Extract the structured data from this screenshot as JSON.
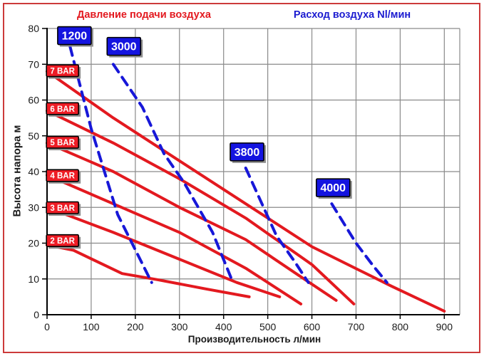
{
  "frame": {
    "border_color": "#cc3a3a",
    "background": "#ffffff"
  },
  "header": {
    "title_left": "Давление подачи воздуха",
    "title_left_color": "#e3191f",
    "title_right": "Расход воздуха Nl/мин",
    "title_right_color": "#1b1bd0"
  },
  "chart_data": {
    "type": "line",
    "title_left": "Давление подачи воздуха",
    "title_right": "Расход воздуха Nl/мин",
    "xlabel": "Производительность л/мин",
    "ylabel": "Высота напора м",
    "xlim": [
      0,
      935
    ],
    "ylim": [
      0,
      80
    ],
    "xticks": [
      0,
      100,
      200,
      300,
      400,
      500,
      600,
      700,
      800,
      900
    ],
    "yticks": [
      0,
      10,
      20,
      30,
      40,
      50,
      60,
      70,
      80
    ],
    "grid": "on",
    "grid_color": "#8a8a8a",
    "axis_color": "#000000",
    "tick_label_color": "#1a1a1a",
    "series_groups": {
      "pressure": {
        "legend": "Давление подачи воздуха",
        "color": "#e3191f",
        "style": "solid",
        "label_bg": "#ee1c25",
        "label_text_color": "#ffffff"
      },
      "airflow": {
        "legend": "Расход воздуха Nl/мин",
        "color": "#1717d8",
        "style": "dashed",
        "label_bg": "#1414e0",
        "label_text_color": "#ffffff"
      }
    },
    "series": [
      {
        "name": "7 BAR",
        "group": "pressure",
        "points": [
          [
            0,
            68
          ],
          [
            150,
            55
          ],
          [
            300,
            43
          ],
          [
            450,
            31
          ],
          [
            600,
            19
          ],
          [
            780,
            8
          ],
          [
            900,
            1
          ]
        ],
        "label": {
          "ax": 35,
          "ay": 68.2
        }
      },
      {
        "name": "6 BAR",
        "group": "pressure",
        "points": [
          [
            0,
            57
          ],
          [
            150,
            48
          ],
          [
            300,
            38
          ],
          [
            450,
            27
          ],
          [
            600,
            14
          ],
          [
            695,
            3
          ]
        ],
        "label": {
          "ax": 35,
          "ay": 57.6
        }
      },
      {
        "name": "5 BAR",
        "group": "pressure",
        "points": [
          [
            0,
            48
          ],
          [
            150,
            40
          ],
          [
            300,
            30
          ],
          [
            450,
            21
          ],
          [
            570,
            11
          ],
          [
            655,
            4
          ]
        ],
        "label": {
          "ax": 35,
          "ay": 48.2
        }
      },
      {
        "name": "4 BAR",
        "group": "pressure",
        "points": [
          [
            0,
            39
          ],
          [
            150,
            31
          ],
          [
            300,
            23
          ],
          [
            450,
            13
          ],
          [
            575,
            3
          ]
        ],
        "label": {
          "ax": 35,
          "ay": 38.9
        }
      },
      {
        "name": "3 BAR",
        "group": "pressure",
        "points": [
          [
            0,
            30
          ],
          [
            150,
            23
          ],
          [
            300,
            15.5
          ],
          [
            430,
            9
          ],
          [
            527,
            5
          ]
        ],
        "label": {
          "ax": 35,
          "ay": 29.9
        }
      },
      {
        "name": "2 BAR",
        "group": "pressure",
        "points": [
          [
            0,
            19.5
          ],
          [
            60,
            18
          ],
          [
            170,
            11.5
          ],
          [
            250,
            9.8
          ],
          [
            360,
            7.2
          ],
          [
            458,
            5
          ]
        ],
        "label": {
          "ax": 35,
          "ay": 20.7
        }
      },
      {
        "name": "1200",
        "group": "airflow",
        "points": [
          [
            52,
            75
          ],
          [
            100,
            52
          ],
          [
            160,
            28
          ],
          [
            237,
            9
          ]
        ],
        "label": {
          "ax": 62,
          "ay": 78
        }
      },
      {
        "name": "3000",
        "group": "airflow",
        "points": [
          [
            150,
            70
          ],
          [
            216,
            58
          ],
          [
            265,
            45
          ],
          [
            310,
            37
          ],
          [
            375,
            23
          ],
          [
            418,
            10
          ]
        ],
        "label": {
          "ax": 174,
          "ay": 75
        }
      },
      {
        "name": "3800",
        "group": "airflow",
        "points": [
          [
            450,
            41
          ],
          [
            520,
            22
          ],
          [
            560,
            15
          ],
          [
            592,
            9
          ]
        ],
        "label": {
          "ax": 453,
          "ay": 45.5
        }
      },
      {
        "name": "4000",
        "group": "airflow",
        "points": [
          [
            645,
            31
          ],
          [
            700,
            20
          ],
          [
            740,
            13.5
          ],
          [
            770,
            9
          ]
        ],
        "label": {
          "ax": 648,
          "ay": 35.5
        }
      }
    ]
  }
}
